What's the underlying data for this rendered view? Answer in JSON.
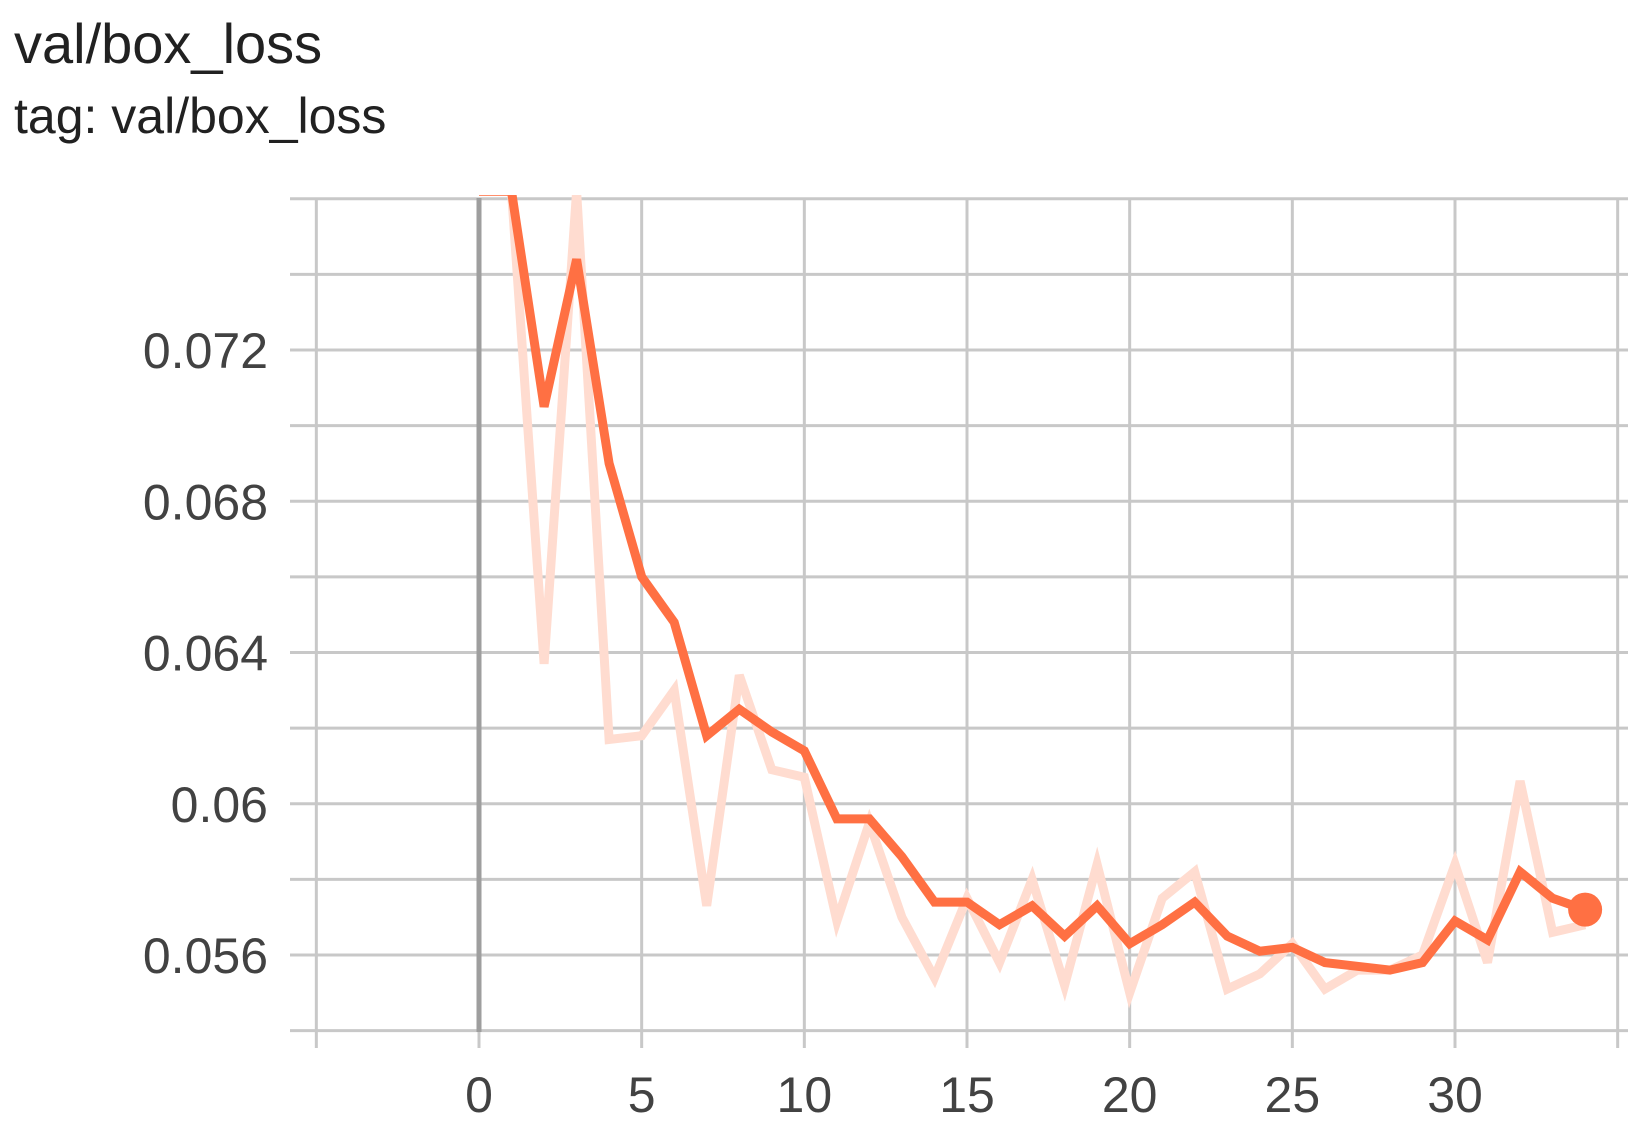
{
  "card": {
    "title": "val/box_loss",
    "subtitle": "tag: val/box_loss"
  },
  "colors": {
    "line": "#ff7043",
    "raw_line": "#ffdcd0",
    "grid": "#c8c8c8",
    "y_axis": "#9e9e9e",
    "tick_text": "#424242"
  },
  "chart_data": {
    "type": "line",
    "title": "val/box_loss",
    "xlabel": "",
    "ylabel": "",
    "xlim": [
      -5,
      35
    ],
    "ylim": [
      0.0542,
      0.0762
    ],
    "x_ticks": [
      "0",
      "5",
      "10",
      "15",
      "20",
      "25",
      "30"
    ],
    "y_ticks": [
      "0.056",
      "0.06",
      "0.064",
      "0.068",
      "0.072"
    ],
    "grid": true,
    "legend": "none",
    "series": [
      {
        "role": "raw",
        "x": [
          0,
          1,
          2,
          3,
          4,
          5,
          6,
          7,
          8,
          9,
          10,
          11,
          12,
          13,
          14,
          15,
          16,
          17,
          18,
          19,
          20,
          21,
          22,
          23,
          24,
          25,
          26,
          27,
          28,
          29,
          30,
          31,
          32,
          33,
          34
        ],
        "values": [
          0.0762,
          0.0762,
          0.0637,
          0.0762,
          0.0617,
          0.0618,
          0.063,
          0.0573,
          0.0634,
          0.0609,
          0.0607,
          0.0569,
          0.0595,
          0.057,
          0.0554,
          0.0575,
          0.0558,
          0.058,
          0.0552,
          0.0584,
          0.055,
          0.0575,
          0.0582,
          0.0551,
          0.0555,
          0.0563,
          0.0551,
          0.0556,
          0.0556,
          0.056,
          0.0584,
          0.0558,
          0.0606,
          0.0566,
          0.0568
        ]
      },
      {
        "role": "smoothed",
        "x": [
          0,
          1,
          2,
          3,
          4,
          5,
          6,
          7,
          8,
          9,
          10,
          11,
          12,
          13,
          14,
          15,
          16,
          17,
          18,
          19,
          20,
          21,
          22,
          23,
          24,
          25,
          26,
          27,
          28,
          29,
          30,
          31,
          32,
          33,
          34
        ],
        "values": [
          0.0762,
          0.0762,
          0.0705,
          0.0744,
          0.069,
          0.066,
          0.0648,
          0.0618,
          0.0625,
          0.0619,
          0.0614,
          0.0596,
          0.0596,
          0.0586,
          0.0574,
          0.0574,
          0.0568,
          0.0573,
          0.0565,
          0.0573,
          0.0563,
          0.0568,
          0.0574,
          0.0565,
          0.0561,
          0.0562,
          0.0558,
          0.0557,
          0.0556,
          0.0558,
          0.0569,
          0.0564,
          0.0582,
          0.0575,
          0.0572
        ]
      }
    ]
  }
}
